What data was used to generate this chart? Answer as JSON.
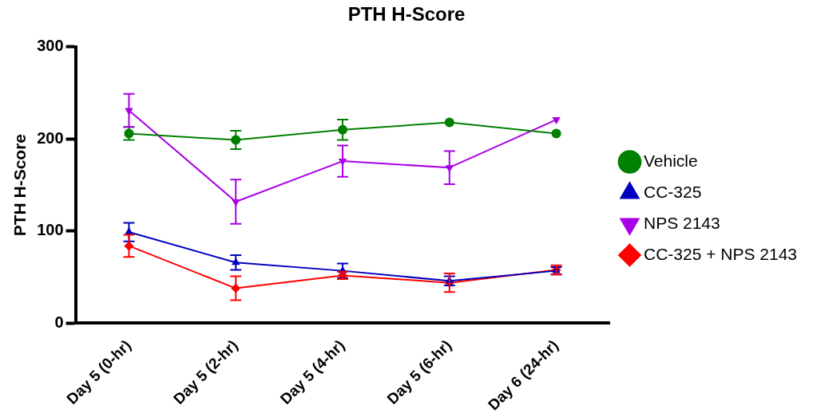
{
  "chart_data": {
    "type": "line",
    "title": "PTH H-Score",
    "ylabel": "PTH H-Score",
    "categories": [
      "Day 5 (0-hr)",
      "Day 5 (2-hr)",
      "Day 5 (4-hr)",
      "Day 5 (6-hr)",
      "Day 6 (24-hr)"
    ],
    "ylim": [
      0,
      300
    ],
    "yticks": [
      0,
      100,
      200,
      300
    ],
    "grid": false,
    "legend": "right",
    "line_style": "solid",
    "series": [
      {
        "name": "Vehicle",
        "color": "#008000",
        "marker": "circle",
        "values": [
          206,
          199,
          210,
          218,
          206
        ],
        "errors": [
          7,
          10,
          11,
          null,
          null
        ]
      },
      {
        "name": "CC-325",
        "color": "#0000c0",
        "marker": "triangle",
        "values": [
          99,
          66,
          57,
          46,
          57
        ],
        "errors": [
          10,
          8,
          8,
          5,
          4
        ]
      },
      {
        "name": "NPS 2143",
        "color": "#a800e6",
        "marker": "triangle-down",
        "values": [
          231,
          132,
          176,
          169,
          221
        ],
        "errors": [
          18,
          24,
          17,
          18,
          null
        ]
      },
      {
        "name": "CC-325 + NPS 2143",
        "color": "#ff0000",
        "marker": "diamond",
        "values": [
          84,
          38,
          52,
          44,
          58
        ],
        "errors": [
          12,
          13,
          4,
          10,
          5
        ]
      }
    ]
  }
}
